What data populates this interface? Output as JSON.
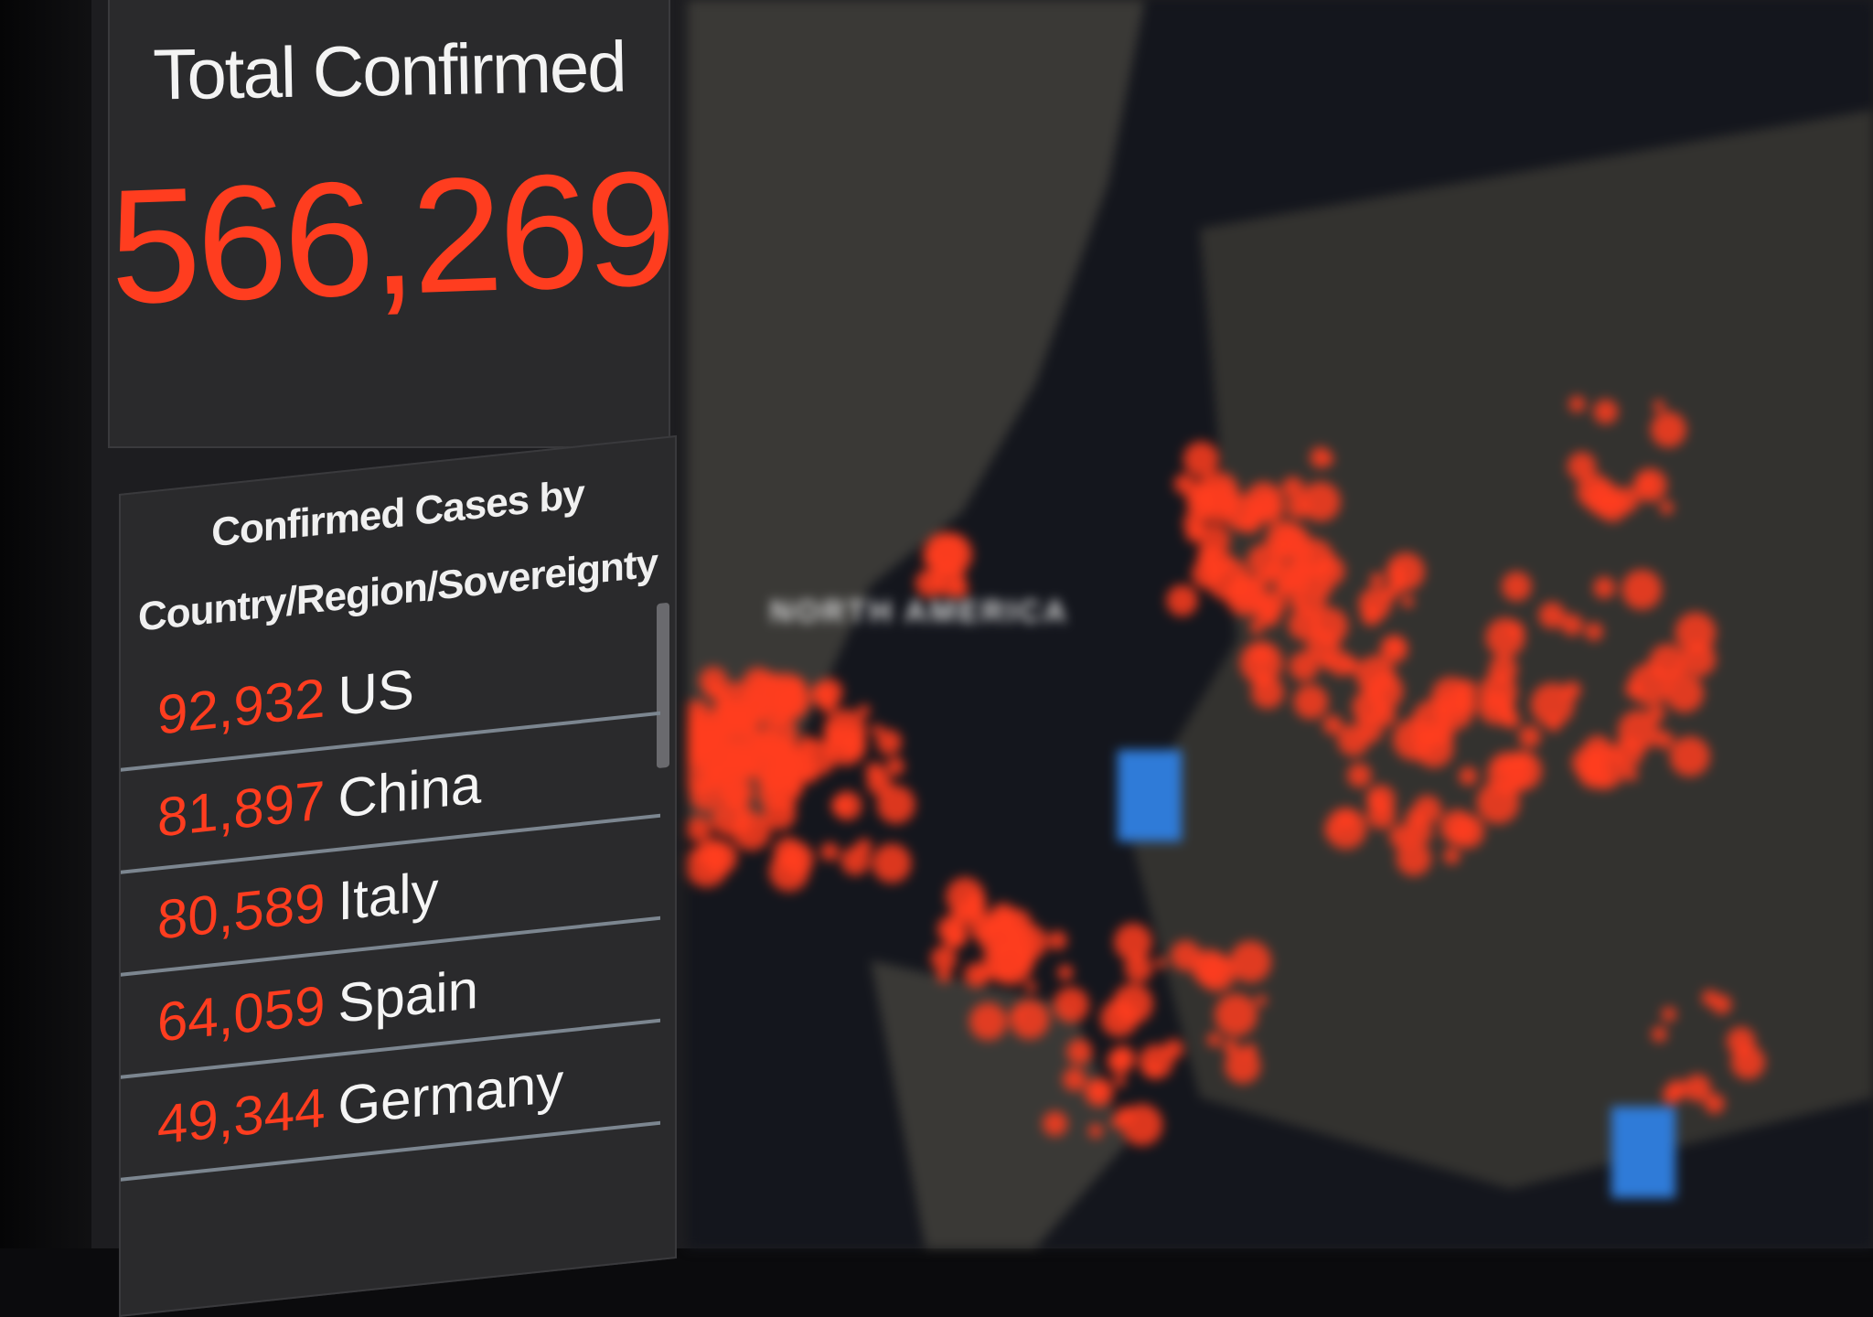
{
  "total_confirmed": {
    "title": "Total Confirmed",
    "value": "566,269"
  },
  "country_list": {
    "title_line1": "Confirmed Cases by",
    "title_line2": "Country/Region/Sovereignty",
    "rows": [
      {
        "count": "92,932",
        "country": "US"
      },
      {
        "count": "81,897",
        "country": "China"
      },
      {
        "count": "80,589",
        "country": "Italy"
      },
      {
        "count": "64,059",
        "country": "Spain"
      },
      {
        "count": "49,344",
        "country": "Germany"
      }
    ]
  },
  "map": {
    "label_north_america": "NORTH AMERICA"
  },
  "colors": {
    "accent_red": "#ff3d1f",
    "panel_bg": "#2a2a2c",
    "map_bg": "#14161d",
    "ocean_marker_blue": "#2f7bd8"
  }
}
